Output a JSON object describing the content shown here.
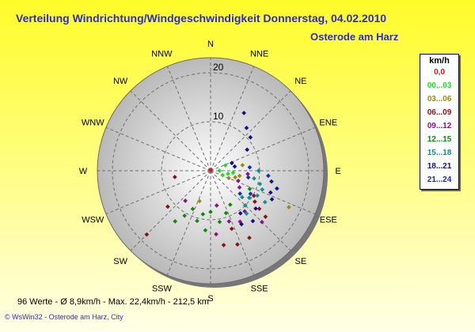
{
  "title": "Verteilung Windrichtung/Windgeschwindigkeit  Donnerstag, 04.02.2010",
  "location": "Osterode am Harz",
  "stats": "96 Werte   -   Ø 8,9km/h  -  Max. 22,4km/h  -  212,5 km",
  "footer": "© WsWin32  -  Osterode am Harz, City",
  "legend": {
    "unit": "km/h",
    "items": [
      {
        "label": "0,0",
        "color": "#e01010"
      },
      {
        "label": "00...03",
        "color": "#22dd22"
      },
      {
        "label": "03...06",
        "color": "#9a8a10"
      },
      {
        "label": "06...09",
        "color": "#8a1010"
      },
      {
        "label": "09...12",
        "color": "#8a108a"
      },
      {
        "label": "12...15",
        "color": "#128a12"
      },
      {
        "label": "15...18",
        "color": "#109090"
      },
      {
        "label": "18...21",
        "color": "#10108a"
      },
      {
        "label": "21...24",
        "color": "#1030b0"
      }
    ]
  },
  "chart_data": {
    "type": "scatter",
    "polar": true,
    "r_max": 22.4,
    "r_ticks": [
      {
        "value": 10,
        "label": "10"
      },
      {
        "value": 20,
        "label": "20"
      }
    ],
    "directions": [
      "N",
      "NNE",
      "NE",
      "ENE",
      "E",
      "ESE",
      "SE",
      "SSE",
      "S",
      "SSW",
      "SW",
      "WSW",
      "W",
      "WNW",
      "NW",
      "NNW"
    ],
    "points": [
      {
        "dir": 0,
        "speed": 0.2,
        "band": 0
      },
      {
        "dir": 70,
        "speed": 3.2,
        "band": 1
      },
      {
        "dir": 90,
        "speed": 1.8,
        "band": 1
      },
      {
        "dir": 100,
        "speed": 3.6,
        "band": 1
      },
      {
        "dir": 110,
        "speed": 2.6,
        "band": 1
      },
      {
        "dir": 95,
        "speed": 4.6,
        "band": 1
      },
      {
        "dir": 105,
        "speed": 5.2,
        "band": 2
      },
      {
        "dir": 112,
        "speed": 4.0,
        "band": 2
      },
      {
        "dir": 100,
        "speed": 6.0,
        "band": 2
      },
      {
        "dir": 80,
        "speed": 6.6,
        "band": 2
      },
      {
        "dir": 200,
        "speed": 6.6,
        "band": 2
      },
      {
        "dir": 115,
        "speed": 17.6,
        "band": 2
      },
      {
        "dir": 120,
        "speed": 10.2,
        "band": 3
      },
      {
        "dir": 125,
        "speed": 11.0,
        "band": 3
      },
      {
        "dir": 128,
        "speed": 12.6,
        "band": 3
      },
      {
        "dir": 130,
        "speed": 14.6,
        "band": 3
      },
      {
        "dir": 230,
        "speed": 11.4,
        "band": 3
      },
      {
        "dir": 225,
        "speed": 18.4,
        "band": 3
      },
      {
        "dir": 160,
        "speed": 16.0,
        "band": 3
      },
      {
        "dir": 170,
        "speed": 15.4,
        "band": 3
      },
      {
        "dir": 150,
        "speed": 15.8,
        "band": 3
      },
      {
        "dir": 160,
        "speed": 12.6,
        "band": 3
      },
      {
        "dir": 260,
        "speed": 7.4,
        "band": 3
      },
      {
        "dir": 95,
        "speed": 7.6,
        "band": 4
      },
      {
        "dir": 110,
        "speed": 6.0,
        "band": 4
      },
      {
        "dir": 120,
        "speed": 6.8,
        "band": 4
      },
      {
        "dir": 140,
        "speed": 10.8,
        "band": 4
      },
      {
        "dir": 160,
        "speed": 11.0,
        "band": 4
      },
      {
        "dir": 175,
        "speed": 13.0,
        "band": 4
      },
      {
        "dir": 220,
        "speed": 8.0,
        "band": 4
      },
      {
        "dir": 150,
        "speed": 12.0,
        "band": 4
      },
      {
        "dir": 135,
        "speed": 14.8,
        "band": 4
      },
      {
        "dir": 170,
        "speed": 7.2,
        "band": 4
      },
      {
        "dir": 180,
        "speed": 8.4,
        "band": 5
      },
      {
        "dir": 190,
        "speed": 9.0,
        "band": 5
      },
      {
        "dir": 195,
        "speed": 10.6,
        "band": 5
      },
      {
        "dir": 205,
        "speed": 8.6,
        "band": 5
      },
      {
        "dir": 210,
        "speed": 10.6,
        "band": 5
      },
      {
        "dir": 215,
        "speed": 12.6,
        "band": 5
      },
      {
        "dir": 160,
        "speed": 9.2,
        "band": 5
      },
      {
        "dir": 150,
        "speed": 8.0,
        "band": 5
      },
      {
        "dir": 170,
        "speed": 10.6,
        "band": 5
      },
      {
        "dir": 185,
        "speed": 12.2,
        "band": 5
      },
      {
        "dir": 115,
        "speed": 8.8,
        "band": 5
      },
      {
        "dir": 100,
        "speed": 9.0,
        "band": 6
      },
      {
        "dir": 105,
        "speed": 10.4,
        "band": 6
      },
      {
        "dir": 110,
        "speed": 11.2,
        "band": 6
      },
      {
        "dir": 118,
        "speed": 10.8,
        "band": 6
      },
      {
        "dir": 125,
        "speed": 9.6,
        "band": 6
      },
      {
        "dir": 130,
        "speed": 8.4,
        "band": 6
      },
      {
        "dir": 135,
        "speed": 10.0,
        "band": 6
      },
      {
        "dir": 140,
        "speed": 11.4,
        "band": 6
      },
      {
        "dir": 120,
        "speed": 12.8,
        "band": 6
      },
      {
        "dir": 90,
        "speed": 9.8,
        "band": 6
      },
      {
        "dir": 70,
        "speed": 4.6,
        "band": 7
      },
      {
        "dir": 80,
        "speed": 5.0,
        "band": 7
      },
      {
        "dir": 60,
        "speed": 8.6,
        "band": 7
      },
      {
        "dir": 50,
        "speed": 10.6,
        "band": 7
      },
      {
        "dir": 30,
        "speed": 13.6,
        "band": 7
      },
      {
        "dir": 40,
        "speed": 11.4,
        "band": 7
      },
      {
        "dir": 110,
        "speed": 13.0,
        "band": 7
      },
      {
        "dir": 115,
        "speed": 13.8,
        "band": 7
      },
      {
        "dir": 105,
        "speed": 14.0,
        "band": 7
      },
      {
        "dir": 100,
        "speed": 12.6,
        "band": 7
      },
      {
        "dir": 130,
        "speed": 12.0,
        "band": 7
      },
      {
        "dir": 140,
        "speed": 13.4,
        "band": 7
      },
      {
        "dir": 150,
        "speed": 12.6,
        "band": 7
      },
      {
        "dir": 145,
        "speed": 10.6,
        "band": 7
      },
      {
        "dir": 95,
        "speed": 11.8,
        "band": 8
      },
      {
        "dir": 120,
        "speed": 9.4,
        "band": 8
      },
      {
        "dir": 128,
        "speed": 7.6,
        "band": 8
      },
      {
        "dir": 85,
        "speed": 8.0,
        "band": 8
      },
      {
        "dir": 100,
        "speed": 7.8,
        "band": 8
      }
    ]
  }
}
